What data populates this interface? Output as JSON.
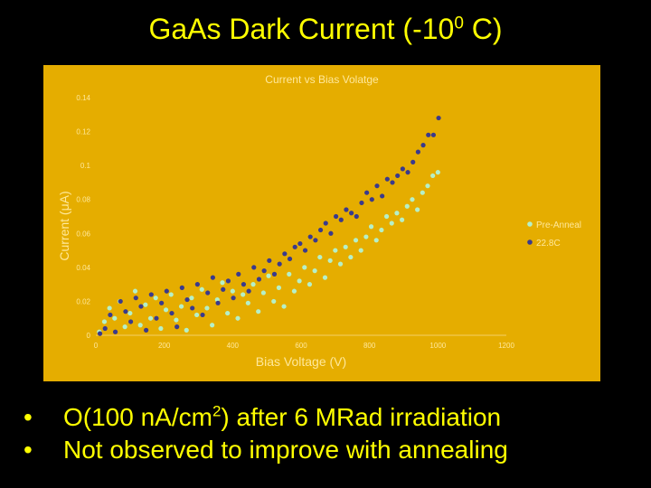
{
  "slide": {
    "title_prefix": "GaAs Dark Current (-10",
    "title_sup": "0",
    "title_suffix": " C)",
    "bullets": [
      {
        "marker": "•",
        "prefix": "O(100 nA/cm",
        "sup": "2",
        "suffix": ") after 6 MRad irradiation"
      },
      {
        "marker": "•",
        "prefix": "Not observed to improve with annealing",
        "sup": "",
        "suffix": ""
      }
    ]
  },
  "chart_data": {
    "type": "scatter",
    "title": "Current vs Bias Volatge",
    "xlabel": "Bias Voltage (V)",
    "ylabel": "Current (μA)",
    "xlim": [
      0,
      1200
    ],
    "ylim": [
      0,
      0.14
    ],
    "x_ticks": [
      "0",
      "200",
      "400",
      "600",
      "800",
      "1000",
      "1200"
    ],
    "y_ticks": [
      "0",
      "0.02",
      "0.04",
      "0.06",
      "0.08",
      "0.1",
      "0.12",
      "0.14"
    ],
    "grid": false,
    "legend_position": "right",
    "series": [
      {
        "name": "Pre-Anneal",
        "color": "#b5f0c8",
        "x": [
          10,
          25,
          40,
          55,
          70,
          85,
          100,
          115,
          130,
          145,
          160,
          175,
          190,
          205,
          220,
          235,
          250,
          265,
          280,
          295,
          310,
          325,
          340,
          355,
          370,
          385,
          400,
          415,
          430,
          445,
          460,
          475,
          490,
          505,
          520,
          535,
          550,
          565,
          580,
          595,
          610,
          625,
          640,
          655,
          670,
          685,
          700,
          715,
          730,
          745,
          760,
          775,
          790,
          805,
          820,
          835,
          850,
          865,
          880,
          895,
          910,
          925,
          940,
          955,
          970,
          985,
          1000
        ],
        "y": [
          0.002,
          0.008,
          0.016,
          0.01,
          0.02,
          0.005,
          0.013,
          0.026,
          0.006,
          0.018,
          0.01,
          0.022,
          0.004,
          0.015,
          0.024,
          0.009,
          0.017,
          0.003,
          0.022,
          0.012,
          0.027,
          0.016,
          0.006,
          0.021,
          0.031,
          0.013,
          0.026,
          0.01,
          0.024,
          0.019,
          0.03,
          0.014,
          0.025,
          0.035,
          0.02,
          0.028,
          0.017,
          0.036,
          0.026,
          0.032,
          0.04,
          0.03,
          0.038,
          0.046,
          0.034,
          0.044,
          0.05,
          0.042,
          0.052,
          0.046,
          0.056,
          0.05,
          0.058,
          0.064,
          0.056,
          0.062,
          0.07,
          0.066,
          0.072,
          0.068,
          0.076,
          0.08,
          0.074,
          0.084,
          0.088,
          0.094,
          0.096
        ]
      },
      {
        "name": "22.8C",
        "color": "#3a3a8c",
        "x": [
          12,
          27,
          42,
          57,
          72,
          87,
          102,
          117,
          132,
          147,
          162,
          177,
          192,
          207,
          222,
          237,
          252,
          267,
          282,
          297,
          312,
          327,
          342,
          357,
          372,
          387,
          402,
          417,
          432,
          447,
          462,
          477,
          492,
          507,
          522,
          537,
          552,
          567,
          582,
          597,
          612,
          627,
          642,
          657,
          672,
          687,
          702,
          717,
          732,
          747,
          762,
          777,
          792,
          807,
          822,
          837,
          852,
          867,
          882,
          897,
          912,
          927,
          942,
          957,
          972,
          987,
          1002
        ],
        "y": [
          0.001,
          0.004,
          0.012,
          0.002,
          0.02,
          0.014,
          0.008,
          0.022,
          0.017,
          0.003,
          0.024,
          0.01,
          0.019,
          0.026,
          0.013,
          0.005,
          0.028,
          0.021,
          0.016,
          0.03,
          0.012,
          0.025,
          0.034,
          0.019,
          0.027,
          0.032,
          0.022,
          0.036,
          0.03,
          0.026,
          0.04,
          0.033,
          0.038,
          0.044,
          0.036,
          0.042,
          0.048,
          0.045,
          0.052,
          0.054,
          0.05,
          0.058,
          0.056,
          0.062,
          0.066,
          0.06,
          0.07,
          0.068,
          0.074,
          0.072,
          0.07,
          0.078,
          0.084,
          0.08,
          0.088,
          0.082,
          0.092,
          0.09,
          0.094,
          0.098,
          0.096,
          0.102,
          0.108,
          0.112,
          0.118,
          0.118,
          0.128
        ]
      }
    ]
  }
}
